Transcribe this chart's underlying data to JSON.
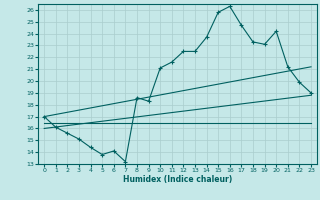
{
  "xlabel": "Humidex (Indice chaleur)",
  "background_color": "#c5e8e8",
  "grid_color": "#aacece",
  "line_color": "#006060",
  "xlim": [
    -0.5,
    23.5
  ],
  "ylim": [
    13,
    26.5
  ],
  "xticks": [
    0,
    1,
    2,
    3,
    4,
    5,
    6,
    7,
    8,
    9,
    10,
    11,
    12,
    13,
    14,
    15,
    16,
    17,
    18,
    19,
    20,
    21,
    22,
    23
  ],
  "yticks": [
    13,
    14,
    15,
    16,
    17,
    18,
    19,
    20,
    21,
    22,
    23,
    24,
    25,
    26
  ],
  "line1_x": [
    0,
    1,
    2,
    3,
    4,
    5,
    6,
    7,
    8,
    9,
    10,
    11,
    12,
    13,
    14,
    15,
    16,
    17,
    18,
    19,
    20,
    21,
    22,
    23
  ],
  "line1_y": [
    17.0,
    16.1,
    15.6,
    15.1,
    14.4,
    13.8,
    14.1,
    13.2,
    18.6,
    18.3,
    21.1,
    21.6,
    22.5,
    22.5,
    23.7,
    25.8,
    26.3,
    24.7,
    23.3,
    23.1,
    24.2,
    21.2,
    19.9,
    19.0
  ],
  "line2_x": [
    0,
    23
  ],
  "line2_y": [
    17.0,
    21.2
  ],
  "line3_x": [
    0,
    23
  ],
  "line3_y": [
    16.0,
    18.8
  ],
  "line4_x": [
    0,
    23
  ],
  "line4_y": [
    16.5,
    16.5
  ]
}
